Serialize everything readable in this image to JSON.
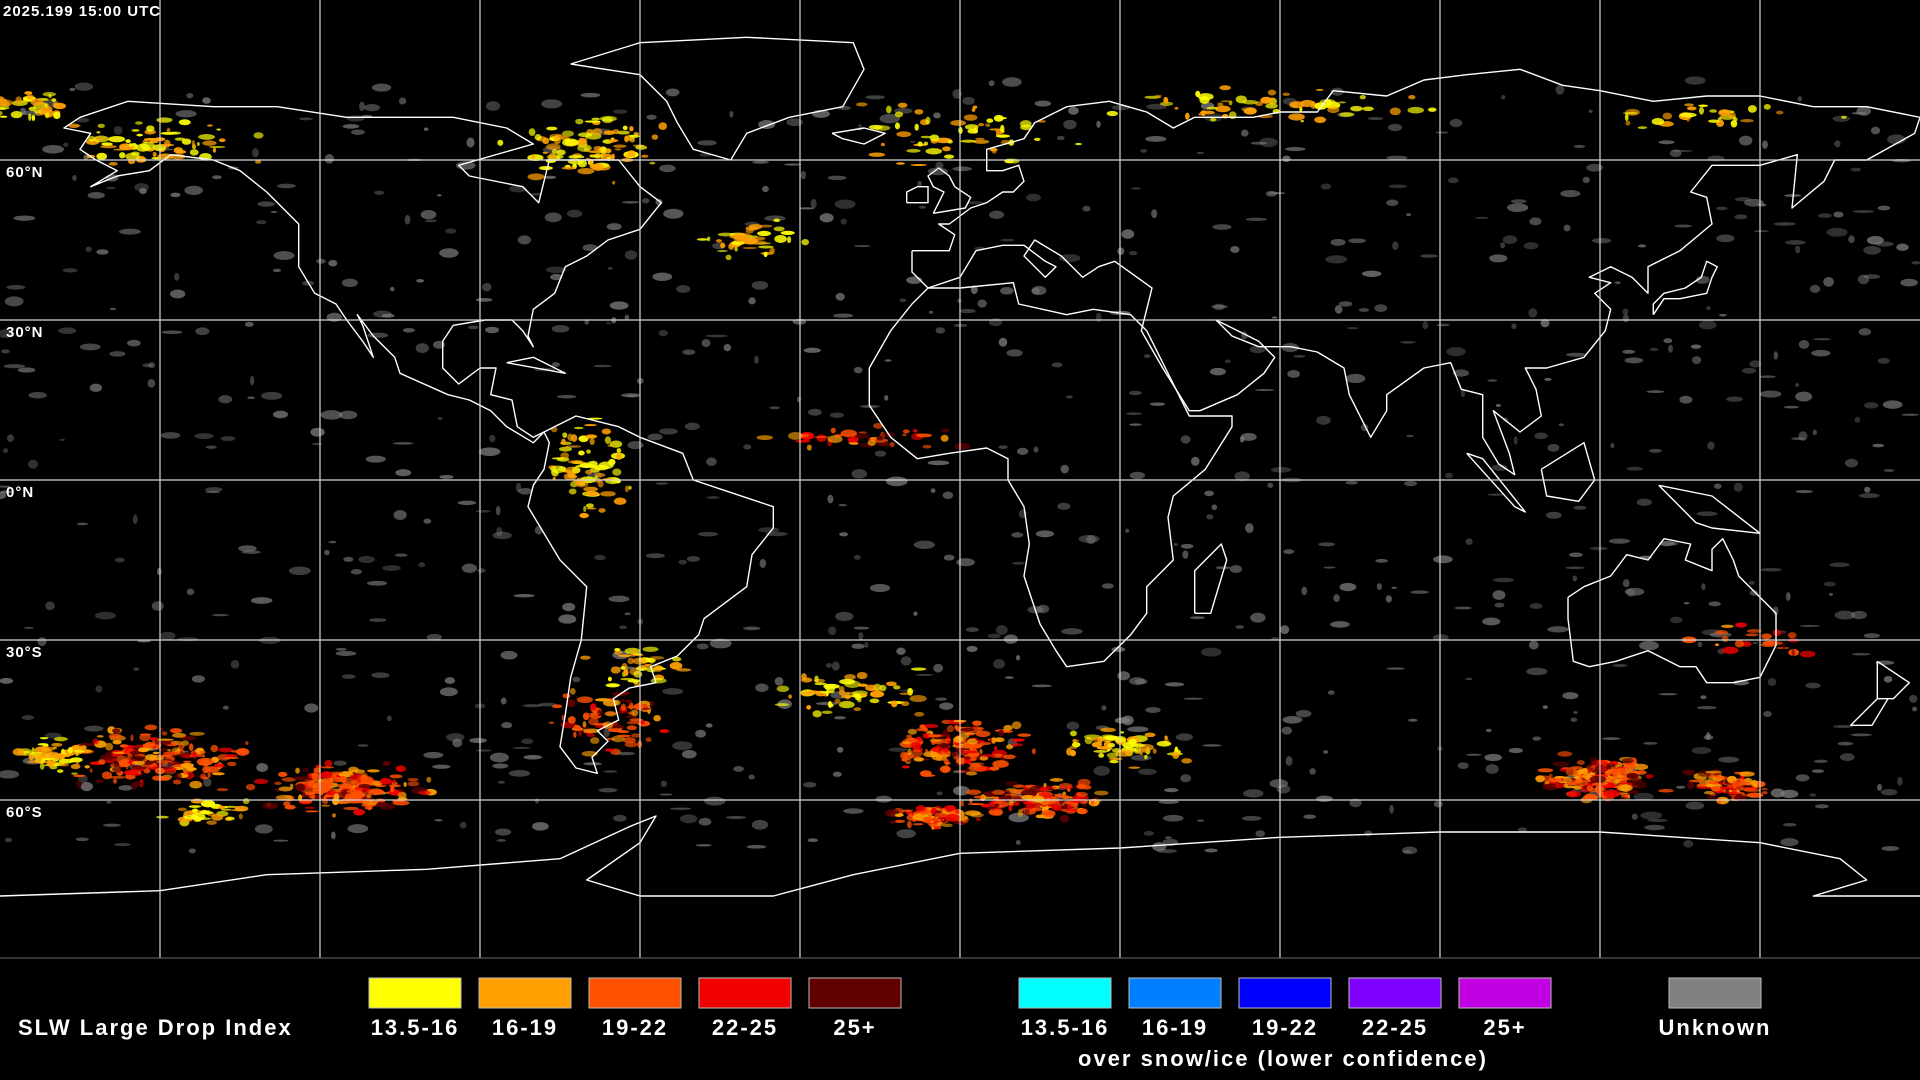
{
  "header": {
    "timestamp": "2025.199 15:00 UTC"
  },
  "map": {
    "latitude_labels": [
      "60°N",
      "30°N",
      "0°N",
      "30°S",
      "60°S"
    ]
  },
  "legend": {
    "title": "SLW Large Drop Index",
    "groups": [
      {
        "items": [
          {
            "label": "13.5-16",
            "color": "#ffff00"
          },
          {
            "label": "16-19",
            "color": "#ffa000"
          },
          {
            "label": "19-22",
            "color": "#ff5000"
          },
          {
            "label": "22-25",
            "color": "#f00000"
          },
          {
            "label": "25+",
            "color": "#600000"
          }
        ]
      },
      {
        "items": [
          {
            "label": "13.5-16",
            "color": "#00ffff"
          },
          {
            "label": "16-19",
            "color": "#0080ff"
          },
          {
            "label": "19-22",
            "color": "#0000ff"
          },
          {
            "label": "22-25",
            "color": "#8000ff"
          },
          {
            "label": "25+",
            "color": "#c000e0"
          }
        ],
        "note": "over snow/ice (lower confidence)"
      },
      {
        "items": [
          {
            "label": "Unknown",
            "color": "#808080"
          }
        ]
      }
    ]
  }
}
